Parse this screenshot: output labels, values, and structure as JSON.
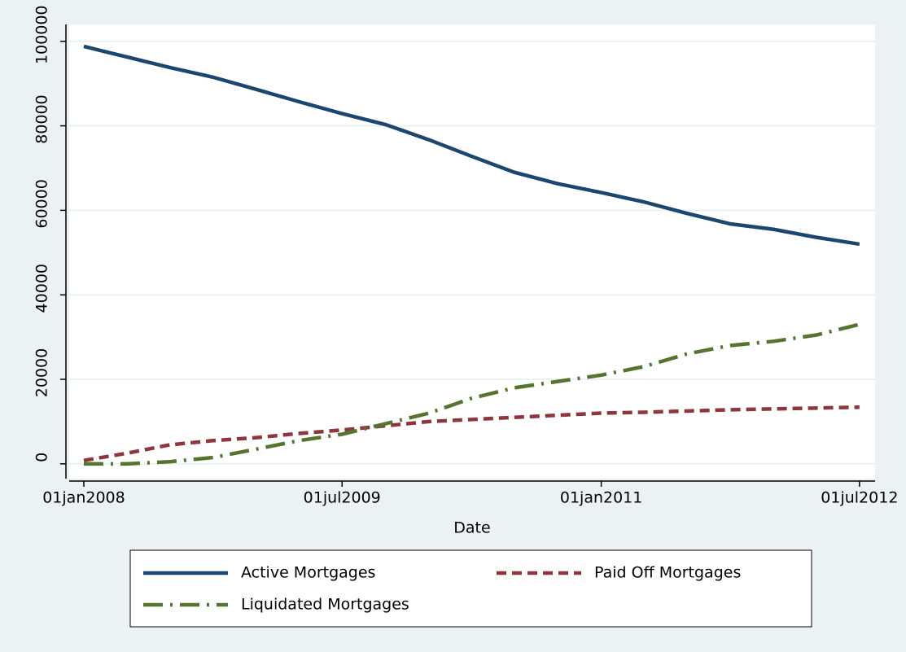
{
  "chart_data": {
    "type": "line",
    "x_label": "Date",
    "x": [
      "2008-01-01",
      "2008-04-01",
      "2008-07-01",
      "2008-10-01",
      "2009-01-01",
      "2009-04-01",
      "2009-07-01",
      "2009-10-01",
      "2010-01-01",
      "2010-04-01",
      "2010-07-01",
      "2010-10-01",
      "2011-01-01",
      "2011-04-01",
      "2011-07-01",
      "2011-10-01",
      "2012-01-01",
      "2012-04-01",
      "2012-07-01"
    ],
    "series": [
      {
        "name": "Active Mortgages",
        "color": "#1a476f",
        "line_style": "solid",
        "values": [
          98800,
          96300,
          93800,
          91500,
          88600,
          85700,
          82900,
          80300,
          76700,
          72800,
          69000,
          66300,
          64200,
          62000,
          59300,
          56800,
          55500,
          53600,
          52000
        ]
      },
      {
        "name": "Paid Off Mortgages",
        "color": "#90353b",
        "line_style": "dash",
        "values": [
          800,
          2500,
          4500,
          5500,
          6200,
          7200,
          8000,
          9000,
          10000,
          10500,
          11000,
          11500,
          12000,
          12200,
          12500,
          12800,
          13000,
          13200,
          13400
        ]
      },
      {
        "name": "Liquidated Mortgages",
        "color": "#55752f",
        "line_style": "longdash_dot",
        "values": [
          0,
          0,
          500,
          1500,
          3500,
          5500,
          7000,
          9500,
          12000,
          15500,
          18000,
          19500,
          21000,
          23000,
          26000,
          28000,
          29000,
          30500,
          33000
        ]
      }
    ],
    "xlim": [
      "2007-12-01",
      "2012-08-03"
    ],
    "xticks": [
      {
        "value": "2008-01-01",
        "label": "01jan2008"
      },
      {
        "value": "2009-07-01",
        "label": "01jul2009"
      },
      {
        "value": "2011-01-01",
        "label": "01jan2011"
      },
      {
        "value": "2012-07-01",
        "label": "01jul2012"
      }
    ],
    "ylim": [
      -3500,
      104000
    ],
    "yticks": [
      0,
      20000,
      40000,
      60000,
      80000,
      100000
    ],
    "grid": true
  }
}
